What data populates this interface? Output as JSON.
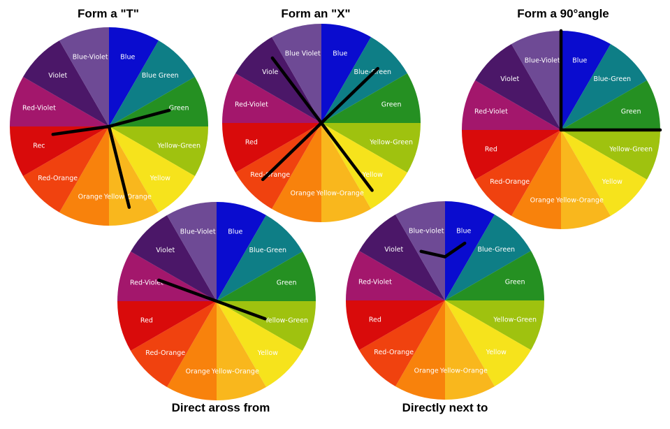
{
  "segments": [
    {
      "label": "Blue",
      "color": "#0a0ccf"
    },
    {
      "label": "Blue-Green",
      "color": "#0e7e86"
    },
    {
      "label": "Green",
      "color": "#259022"
    },
    {
      "label": "Yellow-Green",
      "color": "#9fc20f"
    },
    {
      "label": "Yellow",
      "color": "#f6e31c"
    },
    {
      "label": "Yellow-Orange",
      "color": "#f9b71d"
    },
    {
      "label": "Orange",
      "color": "#f8820c"
    },
    {
      "label": "Red-Orange",
      "color": "#f0420f"
    },
    {
      "label": "Red",
      "color": "#d90b0b"
    },
    {
      "label": "Red-Violet",
      "color": "#a3176c"
    },
    {
      "label": "Violet",
      "color": "#4b1768"
    },
    {
      "label": "Blue-Violet",
      "color": "#6e4a95"
    }
  ],
  "wheels": [
    {
      "title": "Form a \"T\"",
      "labels": {
        "Blue-Green": "Blue Green",
        "Red": "Rec"
      },
      "guide": "T"
    },
    {
      "title": "Form an \"X\"",
      "labels": {
        "Blue-Violet": "Blue Violet",
        "Violet": "Viole"
      },
      "guide": "X"
    },
    {
      "title": "Form a 90°angle",
      "labels": {},
      "guide": "right-angle"
    },
    {
      "title": "Direct aross from",
      "labels": {},
      "guide": "complementary"
    },
    {
      "title": "Directly next to",
      "labels": {
        "Blue-Violet": "Blue-violet"
      },
      "guide": "analogous"
    }
  ]
}
